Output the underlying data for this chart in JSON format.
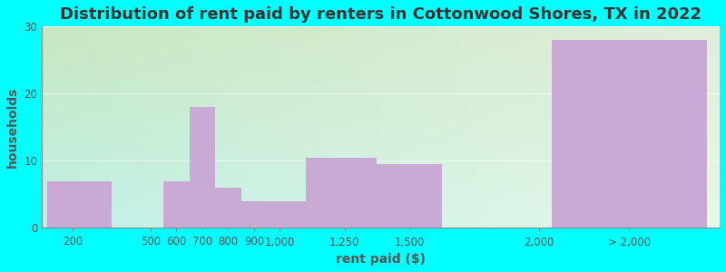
{
  "title": "Distribution of rent paid by renters in Cottonwood Shores, TX in 2022",
  "xlabel": "rent paid ($)",
  "ylabel": "households",
  "bar_labels": [
    "200",
    "500",
    "600",
    "700",
    "800",
    "900",
    "1,000",
    "1,250",
    "1,500",
    "2,000",
    "> 2,000"
  ],
  "bar_left_edges": [
    100,
    350,
    550,
    650,
    750,
    850,
    950,
    1100,
    1375,
    1750,
    2050
  ],
  "bar_right_edges": [
    350,
    550,
    650,
    750,
    850,
    950,
    1100,
    1375,
    1625,
    2050,
    2650
  ],
  "bar_heights": [
    7,
    0,
    7,
    18,
    6,
    4,
    4,
    10.5,
    9.5,
    0,
    28
  ],
  "bar_color": "#c9aad4",
  "bg_color_topleft": "#c8e8c0",
  "bg_color_topright": "#e0eeda",
  "bg_color_bottomleft": "#c0f0e8",
  "bg_color_bottomright": "#e8f8e8",
  "outer_bg": "#00ffff",
  "ylim": [
    0,
    30
  ],
  "yticks": [
    0,
    10,
    20,
    30
  ],
  "xlim": [
    80,
    2700
  ],
  "title_fontsize": 13,
  "axis_label_fontsize": 10,
  "tick_label_fontsize": 8.5,
  "tick_positions": [
    200,
    500,
    600,
    700,
    800,
    900,
    1000,
    1250,
    1500,
    2000,
    2350
  ]
}
